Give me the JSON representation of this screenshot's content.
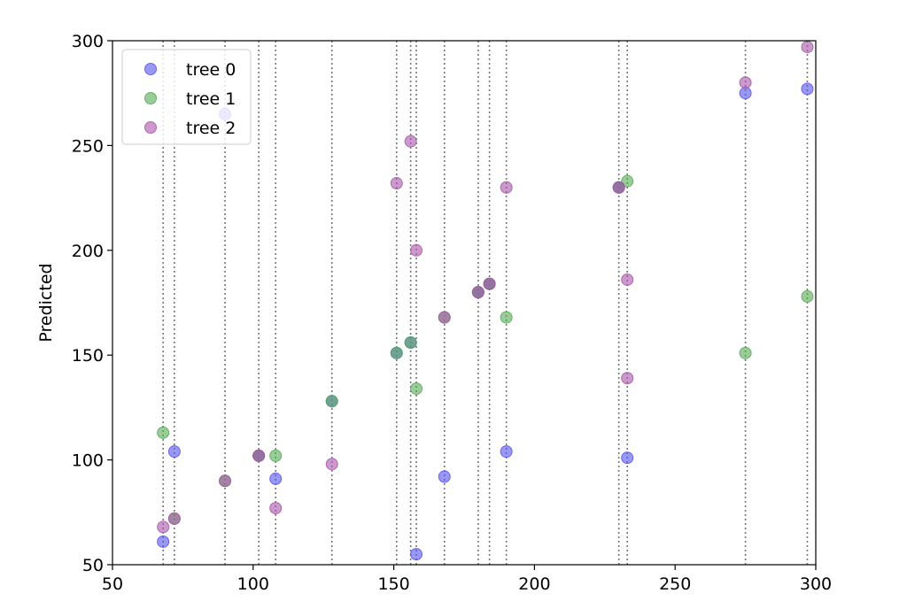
{
  "chart_data": {
    "type": "scatter",
    "ylabel": "Predicted",
    "xlabel": "",
    "xlim": [
      50,
      300
    ],
    "ylim": [
      50,
      300
    ],
    "x_ticks": [
      50,
      100,
      150,
      200,
      250,
      300
    ],
    "y_ticks": [
      50,
      100,
      150,
      200,
      250,
      300
    ],
    "legend_position": "top-left",
    "vertical_reference_lines_x": [
      68,
      72,
      90,
      102,
      108,
      128,
      151,
      156,
      158,
      168,
      180,
      184,
      190,
      230,
      233,
      275,
      297
    ],
    "series": [
      {
        "name": "tree 0",
        "color": "#5555ee",
        "points": [
          [
            68,
            61
          ],
          [
            72,
            104
          ],
          [
            90,
            265
          ],
          [
            102,
            102
          ],
          [
            108,
            91
          ],
          [
            128,
            128
          ],
          [
            151,
            151
          ],
          [
            156,
            156
          ],
          [
            158,
            55
          ],
          [
            168,
            92
          ],
          [
            180,
            180
          ],
          [
            184,
            184
          ],
          [
            190,
            104
          ],
          [
            230,
            230
          ],
          [
            233,
            101
          ],
          [
            275,
            275
          ],
          [
            297,
            277
          ]
        ]
      },
      {
        "name": "tree 1",
        "color": "#55aa55",
        "points": [
          [
            68,
            113
          ],
          [
            72,
            72
          ],
          [
            90,
            90
          ],
          [
            102,
            102
          ],
          [
            108,
            102
          ],
          [
            128,
            128
          ],
          [
            151,
            151
          ],
          [
            156,
            156
          ],
          [
            158,
            134
          ],
          [
            168,
            168
          ],
          [
            180,
            180
          ],
          [
            184,
            184
          ],
          [
            190,
            168
          ],
          [
            230,
            230
          ],
          [
            233,
            233
          ],
          [
            275,
            151
          ],
          [
            297,
            178
          ]
        ]
      },
      {
        "name": "tree 2",
        "color": "#aa55aa",
        "points": [
          [
            68,
            68
          ],
          [
            72,
            72
          ],
          [
            90,
            90
          ],
          [
            102,
            102
          ],
          [
            108,
            77
          ],
          [
            128,
            98
          ],
          [
            151,
            232
          ],
          [
            156,
            252
          ],
          [
            158,
            200
          ],
          [
            168,
            168
          ],
          [
            180,
            180
          ],
          [
            184,
            184
          ],
          [
            190,
            230
          ],
          [
            230,
            230
          ],
          [
            233,
            139
          ],
          [
            233,
            186
          ],
          [
            275,
            280
          ],
          [
            297,
            297
          ]
        ]
      }
    ]
  }
}
